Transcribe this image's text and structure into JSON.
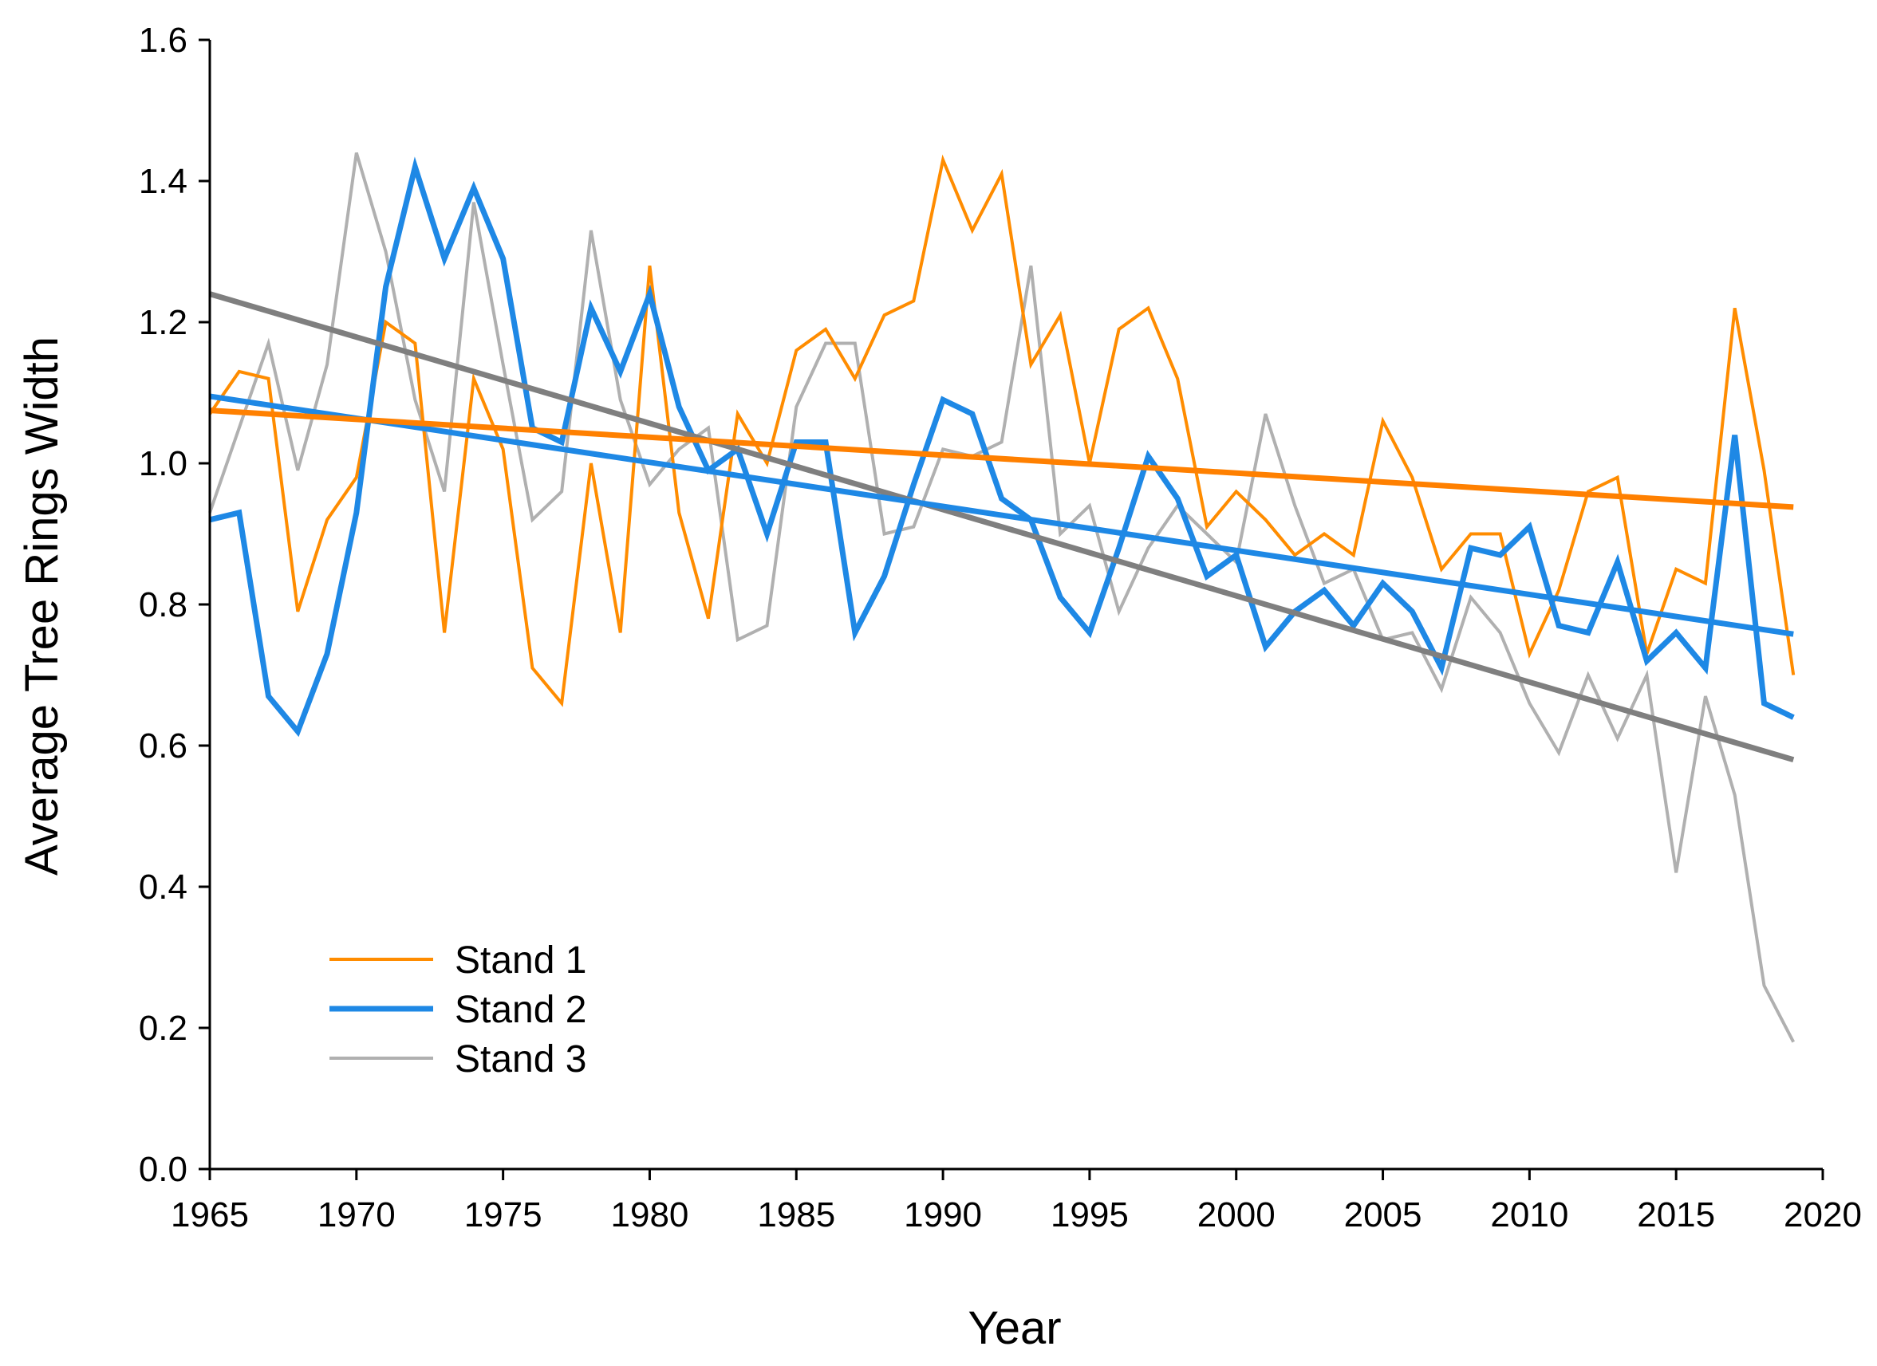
{
  "chart_data": {
    "type": "line",
    "title": "",
    "xlabel": "Year",
    "ylabel": "Average Tree Rings Width",
    "xlim": [
      1965,
      2020
    ],
    "ylim": [
      0.0,
      1.6
    ],
    "xticks": [
      "1965",
      "1970",
      "1975",
      "1980",
      "1985",
      "1990",
      "1995",
      "2000",
      "2005",
      "2010",
      "2015",
      "2020"
    ],
    "yticks": [
      "0.0",
      "0.2",
      "0.4",
      "0.6",
      "0.8",
      "1.0",
      "1.2",
      "1.4",
      "1.6"
    ],
    "legend_position": "bottom-left",
    "x": [
      1965,
      1966,
      1967,
      1968,
      1969,
      1970,
      1971,
      1972,
      1973,
      1974,
      1975,
      1976,
      1977,
      1978,
      1979,
      1980,
      1981,
      1982,
      1983,
      1984,
      1985,
      1986,
      1987,
      1988,
      1989,
      1990,
      1991,
      1992,
      1993,
      1994,
      1995,
      1996,
      1997,
      1998,
      1999,
      2000,
      2001,
      2002,
      2003,
      2004,
      2005,
      2006,
      2007,
      2008,
      2009,
      2010,
      2011,
      2012,
      2013,
      2014,
      2015,
      2016,
      2017,
      2018,
      2019
    ],
    "series": [
      {
        "name": "Stand 1",
        "color": "#FF8C00",
        "values": [
          1.07,
          1.13,
          1.12,
          0.79,
          0.92,
          0.98,
          1.2,
          1.17,
          0.76,
          1.12,
          1.02,
          0.71,
          0.66,
          1.0,
          0.76,
          1.28,
          0.93,
          0.78,
          1.07,
          1.0,
          1.16,
          1.19,
          1.12,
          1.21,
          1.23,
          1.43,
          1.33,
          1.41,
          1.14,
          1.21,
          1.0,
          1.19,
          1.22,
          1.12,
          0.91,
          0.96,
          0.92,
          0.87,
          0.9,
          0.87,
          1.06,
          0.98,
          0.85,
          0.9,
          0.9,
          0.73,
          0.82,
          0.96,
          0.98,
          0.73,
          0.85,
          0.83,
          1.22,
          0.99,
          0.7
        ],
        "trend": {
          "start": 1.075,
          "end": 0.938
        }
      },
      {
        "name": "Stand 2",
        "color": "#1E88E5",
        "values": [
          0.92,
          0.93,
          0.67,
          0.62,
          0.73,
          0.93,
          1.25,
          1.42,
          1.29,
          1.39,
          1.29,
          1.05,
          1.03,
          1.22,
          1.13,
          1.24,
          1.08,
          0.99,
          1.02,
          0.9,
          1.03,
          1.03,
          0.76,
          0.84,
          0.97,
          1.09,
          1.07,
          0.95,
          0.92,
          0.81,
          0.76,
          0.88,
          1.01,
          0.95,
          0.84,
          0.87,
          0.74,
          0.79,
          0.82,
          0.77,
          0.83,
          0.79,
          0.71,
          0.88,
          0.87,
          0.91,
          0.77,
          0.76,
          0.86,
          0.72,
          0.76,
          0.71,
          1.04,
          0.66,
          0.64
        ],
        "trend": {
          "start": 1.095,
          "end": 0.758
        }
      },
      {
        "name": "Stand 3",
        "color": "#B0B0B0",
        "values": [
          0.93,
          1.05,
          1.17,
          0.99,
          1.14,
          1.44,
          1.3,
          1.09,
          0.96,
          1.37,
          1.14,
          0.92,
          0.96,
          1.33,
          1.09,
          0.97,
          1.02,
          1.05,
          0.75,
          0.77,
          1.08,
          1.17,
          1.17,
          0.9,
          0.91,
          1.02,
          1.01,
          1.03,
          1.28,
          0.9,
          0.94,
          0.79,
          0.88,
          0.94,
          0.9,
          0.86,
          1.07,
          0.94,
          0.83,
          0.85,
          0.75,
          0.76,
          0.68,
          0.81,
          0.76,
          0.66,
          0.59,
          0.7,
          0.61,
          0.7,
          0.42,
          0.67,
          0.53,
          0.26,
          0.18
        ],
        "trend": {
          "start": 1.24,
          "end": 0.58
        }
      }
    ]
  }
}
